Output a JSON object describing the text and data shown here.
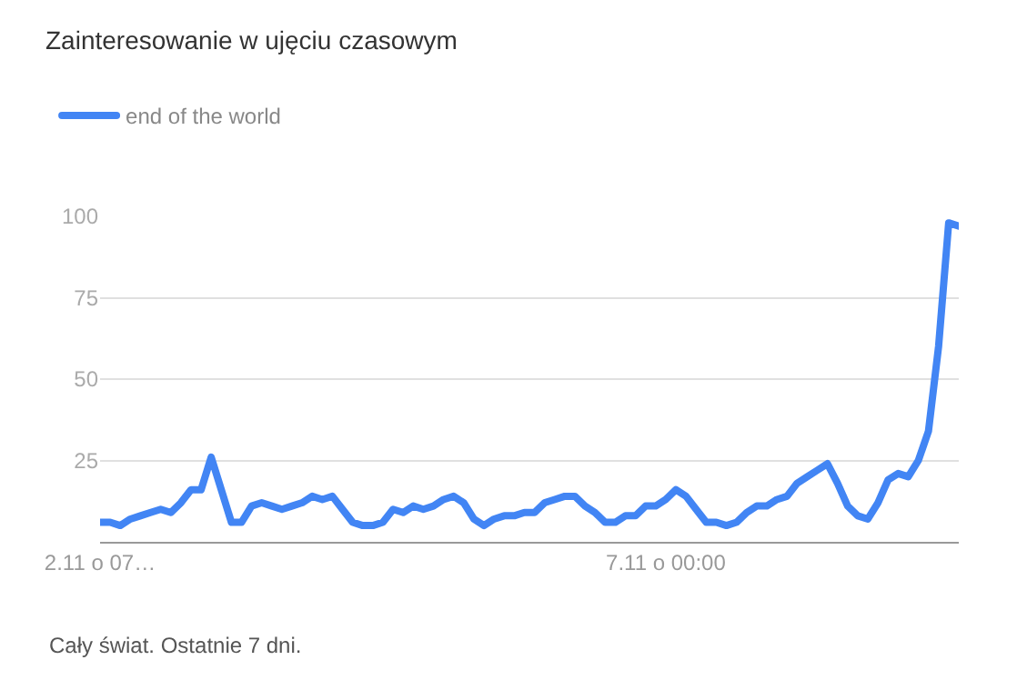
{
  "chart_data": {
    "type": "line",
    "title": "Zainteresowanie w ujęciu czasowym",
    "legend": "top left",
    "grid": "y",
    "marker": "none",
    "line_style": "solid",
    "categories": [
      "2.11 o 07…",
      null,
      null,
      null,
      null,
      null,
      null,
      null,
      null,
      null,
      null,
      null,
      null,
      null,
      null,
      null,
      null,
      null,
      null,
      null,
      null,
      null,
      null,
      null,
      null,
      null,
      null,
      null,
      null,
      null,
      null,
      null,
      null,
      null,
      null,
      null,
      null,
      null,
      null,
      null,
      null,
      null,
      null,
      null,
      null,
      null,
      null,
      null,
      null,
      null,
      null,
      null,
      null,
      null,
      null,
      null,
      "7.11 o 00:00",
      null,
      null,
      null,
      null,
      null,
      null,
      null,
      null,
      null,
      null,
      null,
      null,
      null,
      null,
      null,
      null,
      null,
      null,
      null,
      null,
      null,
      null,
      null,
      null,
      null,
      null,
      null,
      null,
      null
    ],
    "ylim": [
      0,
      100
    ],
    "yticks": [
      25,
      50,
      75,
      100
    ],
    "annotations": [
      "Cały świat. Ostatnie 7 dni."
    ],
    "series": [
      {
        "name": "end of the world",
        "color": "#4285f4",
        "values": [
          6,
          6,
          5,
          7,
          8,
          9,
          10,
          9,
          12,
          16,
          16,
          26,
          16,
          6,
          6,
          11,
          12,
          11,
          10,
          11,
          12,
          14,
          13,
          14,
          10,
          6,
          5,
          5,
          6,
          10,
          9,
          11,
          10,
          11,
          13,
          14,
          12,
          7,
          5,
          7,
          8,
          8,
          9,
          9,
          12,
          13,
          14,
          14,
          11,
          9,
          6,
          6,
          8,
          8,
          11,
          11,
          13,
          16,
          14,
          10,
          6,
          6,
          5,
          6,
          9,
          11,
          11,
          13,
          14,
          18,
          20,
          22,
          24,
          18,
          11,
          8,
          7,
          12,
          19,
          21,
          20,
          25,
          34,
          60,
          98,
          97
        ]
      }
    ]
  }
}
